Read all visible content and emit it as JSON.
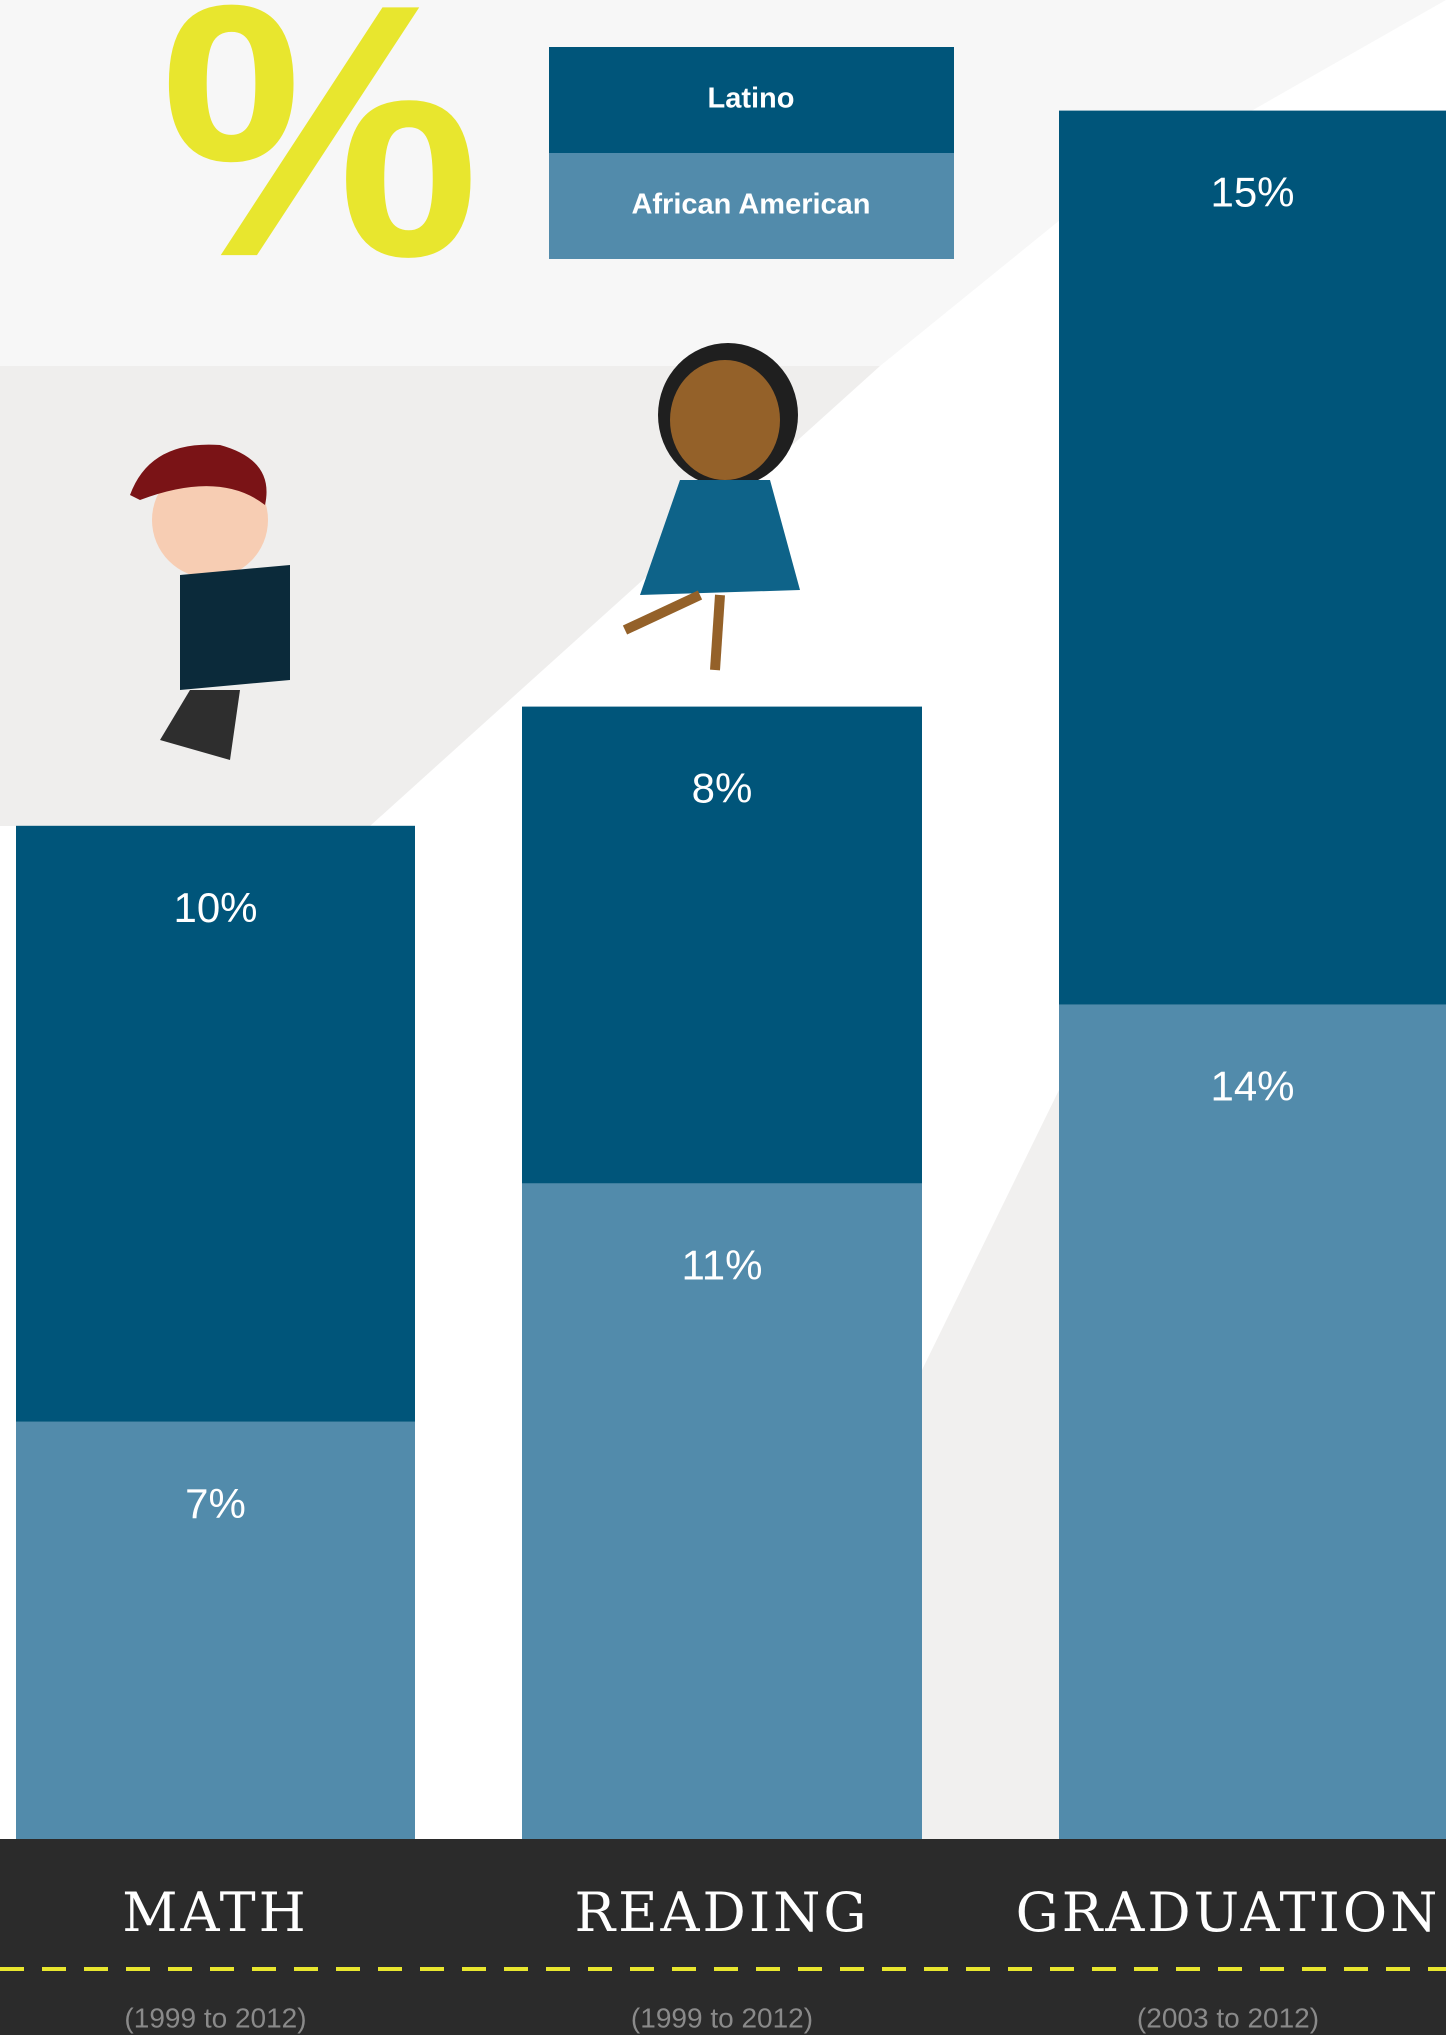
{
  "chart_data": {
    "type": "stacked-bar",
    "symbol": "%",
    "categories": [
      "MATH",
      "READING",
      "GRADUATION"
    ],
    "periods": [
      "(1999 to 2012)",
      "(1999 to 2012)",
      "(2003 to 2012)"
    ],
    "series": [
      {
        "name": "African American",
        "color": "#528bab",
        "values": [
          7,
          11,
          14
        ],
        "value_labels": [
          "7%",
          "11%",
          "14%"
        ]
      },
      {
        "name": "Latino",
        "color": "#00557a",
        "values": [
          10,
          8,
          15
        ],
        "value_labels": [
          "10%",
          "8%",
          "15%"
        ]
      }
    ]
  }
}
